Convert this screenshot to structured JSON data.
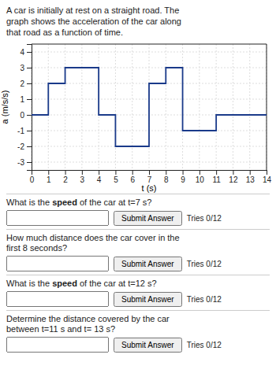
{
  "chart_data": {
    "type": "line",
    "title": "A car is initially at rest on a straight road. The\ngraph shows the acceleration of the car along\nthat road as a function of time.",
    "xlabel": "t (s)",
    "ylabel": "a (m/s/s)",
    "x": [
      0,
      1,
      1,
      2,
      2,
      4,
      4,
      5,
      5,
      7,
      7,
      8,
      8,
      9,
      9,
      11,
      11,
      12,
      12,
      14
    ],
    "values": [
      0,
      0,
      2,
      2,
      3,
      3,
      0,
      0,
      -2,
      -2,
      2,
      2,
      3,
      3,
      -1,
      -1,
      0,
      0,
      0,
      0
    ],
    "color": "#1a3a8a",
    "xlim": [
      0,
      14
    ],
    "ylim": [
      -3.5,
      4.5
    ],
    "xticks": [
      0,
      1,
      2,
      3,
      4,
      5,
      6,
      7,
      8,
      9,
      10,
      11,
      12,
      13,
      14
    ],
    "yticks": [
      -3,
      -2,
      -1,
      0,
      1,
      2,
      3,
      4
    ],
    "grid": true
  },
  "questions": [
    {
      "text": "What is the speed of the car at t=7 s?",
      "bold": [
        "speed"
      ]
    },
    {
      "text": "How much distance does the car cover in the\nfirst 8 seconds?",
      "bold": []
    },
    {
      "text": "What is the speed of the car at t=12 s?",
      "bold": [
        "speed"
      ]
    },
    {
      "text": "Determine the distance covered by the car\nbetween t=11 s and t= 13 s?",
      "bold": []
    }
  ],
  "button_label": "Submit Answer",
  "tries_label": "Tries 0/12"
}
